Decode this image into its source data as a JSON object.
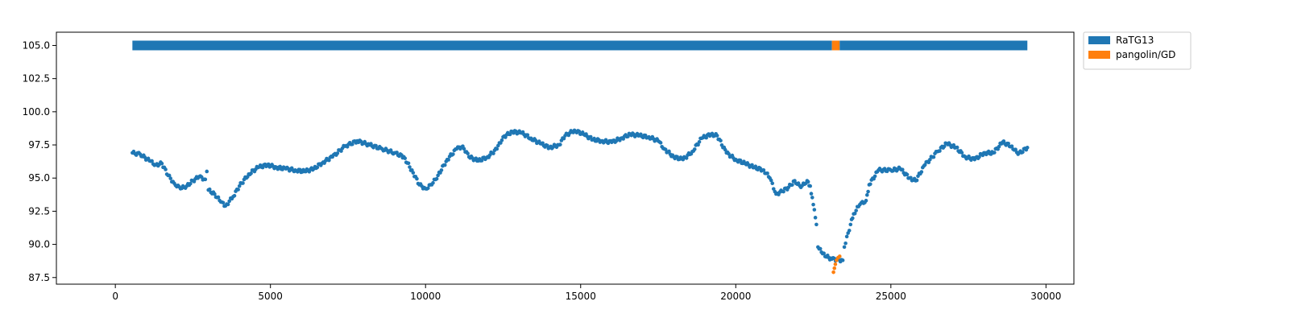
{
  "chart_data": {
    "type": "scatter",
    "title": "",
    "xlabel": "",
    "ylabel": "",
    "xlim": [
      -1900,
      30900
    ],
    "ylim": [
      87.0,
      106.0
    ],
    "x_ticks": [
      0,
      5000,
      10000,
      15000,
      20000,
      25000,
      30000
    ],
    "x_tick_labels": [
      "0",
      "5000",
      "10000",
      "15000",
      "20000",
      "25000",
      "30000"
    ],
    "y_ticks": [
      87.5,
      90.0,
      92.5,
      95.0,
      97.5,
      100.0,
      102.5,
      105.0
    ],
    "y_tick_labels": [
      "87.5",
      "90.0",
      "92.5",
      "95.0",
      "97.5",
      "100.0",
      "102.5",
      "105.0"
    ],
    "grid": false,
    "legend": {
      "placement": "outside-top-right",
      "entries": [
        {
          "label": "RaTG13",
          "color": "#1f77b4"
        },
        {
          "label": "pangolin/GD",
          "color": "#ff7f0e"
        }
      ]
    },
    "best_match_bar": {
      "y": 105.0,
      "segments": [
        {
          "series": "RaTG13",
          "x_start": 550,
          "x_end": 23100
        },
        {
          "series": "pangolin/GD",
          "x_start": 23100,
          "x_end": 23350
        },
        {
          "series": "RaTG13",
          "x_start": 23350,
          "x_end": 29400
        }
      ]
    },
    "series": [
      {
        "name": "RaTG13",
        "color": "#1f77b4",
        "points": [
          [
            550,
            96.9
          ],
          [
            800,
            96.8
          ],
          [
            1100,
            96.3
          ],
          [
            1300,
            96.0
          ],
          [
            1500,
            96.1
          ],
          [
            1700,
            95.2
          ],
          [
            1900,
            94.6
          ],
          [
            2100,
            94.2
          ],
          [
            2300,
            94.4
          ],
          [
            2500,
            94.8
          ],
          [
            2700,
            95.1
          ],
          [
            2900,
            94.9
          ],
          [
            2950,
            95.5
          ],
          [
            3000,
            94.1
          ],
          [
            3200,
            93.8
          ],
          [
            3400,
            93.2
          ],
          [
            3550,
            92.9
          ],
          [
            3800,
            93.6
          ],
          [
            4000,
            94.4
          ],
          [
            4300,
            95.3
          ],
          [
            4600,
            95.8
          ],
          [
            4900,
            96.0
          ],
          [
            5200,
            95.8
          ],
          [
            5500,
            95.7
          ],
          [
            5800,
            95.6
          ],
          [
            6100,
            95.5
          ],
          [
            6400,
            95.7
          ],
          [
            6700,
            96.2
          ],
          [
            7000,
            96.6
          ],
          [
            7400,
            97.4
          ],
          [
            7800,
            97.8
          ],
          [
            8200,
            97.5
          ],
          [
            8600,
            97.2
          ],
          [
            9000,
            96.9
          ],
          [
            9300,
            96.6
          ],
          [
            9600,
            95.4
          ],
          [
            9800,
            94.5
          ],
          [
            10000,
            94.2
          ],
          [
            10200,
            94.5
          ],
          [
            10400,
            95.2
          ],
          [
            10700,
            96.4
          ],
          [
            11000,
            97.2
          ],
          [
            11200,
            97.4
          ],
          [
            11400,
            96.6
          ],
          [
            11700,
            96.3
          ],
          [
            12000,
            96.6
          ],
          [
            12300,
            97.2
          ],
          [
            12500,
            98.1
          ],
          [
            12800,
            98.5
          ],
          [
            13100,
            98.4
          ],
          [
            13400,
            98.0
          ],
          [
            13700,
            97.6
          ],
          [
            14000,
            97.3
          ],
          [
            14300,
            97.5
          ],
          [
            14500,
            98.2
          ],
          [
            14800,
            98.6
          ],
          [
            15100,
            98.3
          ],
          [
            15400,
            97.9
          ],
          [
            15700,
            97.8
          ],
          [
            16000,
            97.7
          ],
          [
            16300,
            98.0
          ],
          [
            16600,
            98.3
          ],
          [
            16900,
            98.2
          ],
          [
            17200,
            98.1
          ],
          [
            17500,
            97.8
          ],
          [
            17700,
            97.2
          ],
          [
            18000,
            96.6
          ],
          [
            18300,
            96.4
          ],
          [
            18600,
            97.0
          ],
          [
            18900,
            98.0
          ],
          [
            19200,
            98.3
          ],
          [
            19400,
            98.2
          ],
          [
            19700,
            96.9
          ],
          [
            20000,
            96.4
          ],
          [
            20300,
            96.1
          ],
          [
            20600,
            95.8
          ],
          [
            20900,
            95.6
          ],
          [
            21100,
            95.0
          ],
          [
            21300,
            93.8
          ],
          [
            21500,
            94.0
          ],
          [
            21700,
            94.3
          ],
          [
            21900,
            94.8
          ],
          [
            22100,
            94.3
          ],
          [
            22300,
            94.8
          ],
          [
            22400,
            94.4
          ],
          [
            22500,
            93.0
          ],
          [
            22600,
            91.5
          ],
          [
            22650,
            89.8
          ],
          [
            22800,
            89.3
          ],
          [
            23000,
            89.0
          ],
          [
            23100,
            88.9
          ],
          [
            23450,
            88.8
          ],
          [
            23500,
            89.8
          ],
          [
            23700,
            91.5
          ],
          [
            23800,
            92.3
          ],
          [
            24000,
            93.0
          ],
          [
            24200,
            93.3
          ],
          [
            24300,
            94.5
          ],
          [
            24600,
            95.6
          ],
          [
            25000,
            95.6
          ],
          [
            25300,
            95.7
          ],
          [
            25600,
            95.0
          ],
          [
            25800,
            94.8
          ],
          [
            26100,
            96.0
          ],
          [
            26500,
            97.0
          ],
          [
            26800,
            97.6
          ],
          [
            27100,
            97.3
          ],
          [
            27400,
            96.6
          ],
          [
            27700,
            96.4
          ],
          [
            28000,
            96.9
          ],
          [
            28300,
            96.9
          ],
          [
            28600,
            97.7
          ],
          [
            28900,
            97.4
          ],
          [
            29100,
            96.8
          ],
          [
            29400,
            97.3
          ]
        ]
      },
      {
        "name": "pangolin/GD",
        "color": "#ff7f0e",
        "points": [
          [
            23150,
            87.9
          ],
          [
            23180,
            88.2
          ],
          [
            23210,
            88.5
          ],
          [
            23250,
            88.8
          ],
          [
            23300,
            89.0
          ],
          [
            23350,
            89.1
          ]
        ]
      }
    ]
  }
}
